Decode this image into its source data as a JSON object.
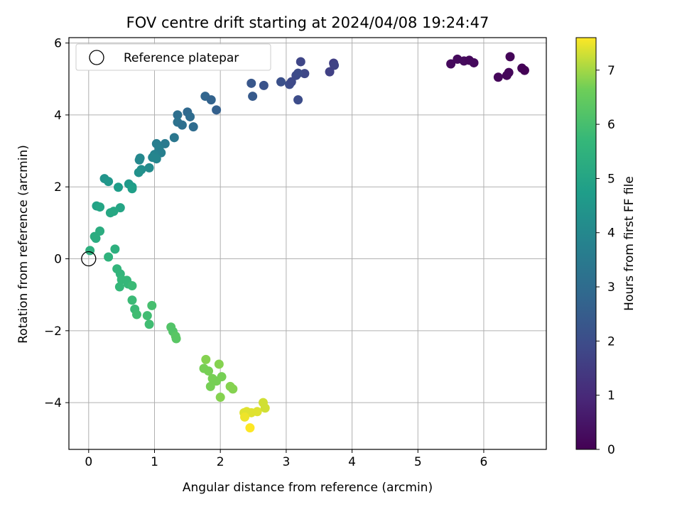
{
  "chart_data": {
    "type": "scatter",
    "title": "FOV centre drift starting at 2024/04/08 19:24:47",
    "xlabel": "Angular distance from reference (arcmin)",
    "ylabel": "Rotation from reference (arcmin)",
    "xlim": [
      -0.3,
      6.95
    ],
    "ylim": [
      -5.3,
      6.15
    ],
    "xticks": [
      0,
      1,
      2,
      3,
      4,
      5,
      6
    ],
    "yticks": [
      -4,
      -2,
      0,
      2,
      4,
      6
    ],
    "grid": true,
    "legend": {
      "placement": "top-left",
      "entries": [
        "Reference platepar"
      ]
    },
    "reference_point": {
      "x": 0,
      "y": 0
    },
    "colorbar": {
      "label": "Hours from first FF file",
      "min": 0,
      "max": 7.6,
      "ticks": [
        0,
        1,
        2,
        3,
        4,
        5,
        6,
        7
      ],
      "colormap": "viridis"
    },
    "points": [
      {
        "x": 5.5,
        "y": 5.42,
        "h": 0.2
      },
      {
        "x": 5.6,
        "y": 5.55,
        "h": 0.22
      },
      {
        "x": 5.7,
        "y": 5.5,
        "h": 0.25
      },
      {
        "x": 5.78,
        "y": 5.52,
        "h": 0.18
      },
      {
        "x": 5.85,
        "y": 5.45,
        "h": 0.2
      },
      {
        "x": 6.22,
        "y": 5.05,
        "h": 0.15
      },
      {
        "x": 6.35,
        "y": 5.1,
        "h": 0.12
      },
      {
        "x": 6.38,
        "y": 5.18,
        "h": 0.15
      },
      {
        "x": 6.4,
        "y": 5.62,
        "h": 0.1
      },
      {
        "x": 6.58,
        "y": 5.3,
        "h": 0.05
      },
      {
        "x": 6.62,
        "y": 5.24,
        "h": 0.03
      },
      {
        "x": 3.22,
        "y": 5.48,
        "h": 1.8
      },
      {
        "x": 3.72,
        "y": 5.44,
        "h": 1.6
      },
      {
        "x": 3.73,
        "y": 5.38,
        "h": 1.7
      },
      {
        "x": 3.66,
        "y": 5.2,
        "h": 1.65
      },
      {
        "x": 3.28,
        "y": 5.15,
        "h": 1.85
      },
      {
        "x": 3.15,
        "y": 5.1,
        "h": 1.9
      },
      {
        "x": 3.18,
        "y": 5.16,
        "h": 1.95
      },
      {
        "x": 3.05,
        "y": 4.85,
        "h": 2.0
      },
      {
        "x": 3.08,
        "y": 4.92,
        "h": 1.9
      },
      {
        "x": 2.92,
        "y": 4.92,
        "h": 2.1
      },
      {
        "x": 3.18,
        "y": 4.42,
        "h": 2.0
      },
      {
        "x": 2.66,
        "y": 4.82,
        "h": 2.2
      },
      {
        "x": 2.47,
        "y": 4.88,
        "h": 2.3
      },
      {
        "x": 2.49,
        "y": 4.52,
        "h": 2.4
      },
      {
        "x": 1.77,
        "y": 4.52,
        "h": 2.8
      },
      {
        "x": 1.86,
        "y": 4.42,
        "h": 2.7
      },
      {
        "x": 1.94,
        "y": 4.14,
        "h": 2.6
      },
      {
        "x": 1.5,
        "y": 4.08,
        "h": 2.9
      },
      {
        "x": 1.54,
        "y": 3.95,
        "h": 3.0
      },
      {
        "x": 1.35,
        "y": 4.0,
        "h": 3.1
      },
      {
        "x": 1.35,
        "y": 3.8,
        "h": 3.2
      },
      {
        "x": 1.42,
        "y": 3.72,
        "h": 3.1
      },
      {
        "x": 1.59,
        "y": 3.67,
        "h": 3.0
      },
      {
        "x": 1.3,
        "y": 3.37,
        "h": 3.4
      },
      {
        "x": 1.16,
        "y": 3.2,
        "h": 3.5
      },
      {
        "x": 1.03,
        "y": 3.2,
        "h": 3.6
      },
      {
        "x": 1.07,
        "y": 3.05,
        "h": 3.7
      },
      {
        "x": 1.1,
        "y": 2.95,
        "h": 3.7
      },
      {
        "x": 1.0,
        "y": 2.9,
        "h": 3.8
      },
      {
        "x": 0.97,
        "y": 2.82,
        "h": 3.9
      },
      {
        "x": 1.03,
        "y": 2.78,
        "h": 3.9
      },
      {
        "x": 0.78,
        "y": 2.8,
        "h": 4.0
      },
      {
        "x": 0.77,
        "y": 2.75,
        "h": 4.0
      },
      {
        "x": 0.92,
        "y": 2.53,
        "h": 4.1
      },
      {
        "x": 0.8,
        "y": 2.48,
        "h": 4.2
      },
      {
        "x": 0.76,
        "y": 2.4,
        "h": 4.3
      },
      {
        "x": 0.24,
        "y": 2.23,
        "h": 4.4
      },
      {
        "x": 0.3,
        "y": 2.15,
        "h": 4.5
      },
      {
        "x": 0.45,
        "y": 1.99,
        "h": 4.7
      },
      {
        "x": 0.61,
        "y": 2.08,
        "h": 4.6
      },
      {
        "x": 0.66,
        "y": 2.0,
        "h": 4.7
      },
      {
        "x": 0.66,
        "y": 1.95,
        "h": 4.8
      },
      {
        "x": 0.12,
        "y": 1.47,
        "h": 4.9
      },
      {
        "x": 0.17,
        "y": 1.44,
        "h": 5.0
      },
      {
        "x": 0.48,
        "y": 1.42,
        "h": 5.0
      },
      {
        "x": 0.33,
        "y": 1.28,
        "h": 5.1
      },
      {
        "x": 0.38,
        "y": 1.32,
        "h": 5.1
      },
      {
        "x": 0.09,
        "y": 0.62,
        "h": 5.3
      },
      {
        "x": 0.17,
        "y": 0.77,
        "h": 5.3
      },
      {
        "x": 0.11,
        "y": 0.57,
        "h": 5.3
      },
      {
        "x": 0.02,
        "y": 0.23,
        "h": 5.4
      },
      {
        "x": 0.4,
        "y": 0.27,
        "h": 5.4
      },
      {
        "x": 0.3,
        "y": 0.05,
        "h": 5.5
      },
      {
        "x": 0.43,
        "y": -0.28,
        "h": 5.6
      },
      {
        "x": 0.48,
        "y": -0.42,
        "h": 5.6
      },
      {
        "x": 0.5,
        "y": -0.58,
        "h": 5.7
      },
      {
        "x": 0.47,
        "y": -0.78,
        "h": 5.7
      },
      {
        "x": 0.58,
        "y": -0.6,
        "h": 5.7
      },
      {
        "x": 0.6,
        "y": -0.7,
        "h": 5.7
      },
      {
        "x": 0.66,
        "y": -0.75,
        "h": 5.8
      },
      {
        "x": 0.66,
        "y": -1.15,
        "h": 5.8
      },
      {
        "x": 0.7,
        "y": -1.4,
        "h": 5.8
      },
      {
        "x": 0.73,
        "y": -1.55,
        "h": 5.9
      },
      {
        "x": 0.89,
        "y": -1.58,
        "h": 5.9
      },
      {
        "x": 0.92,
        "y": -1.82,
        "h": 5.9
      },
      {
        "x": 0.96,
        "y": -1.3,
        "h": 6.0
      },
      {
        "x": 1.25,
        "y": -1.9,
        "h": 6.2
      },
      {
        "x": 1.28,
        "y": -2.02,
        "h": 6.2
      },
      {
        "x": 1.32,
        "y": -2.15,
        "h": 6.3
      },
      {
        "x": 1.33,
        "y": -2.22,
        "h": 6.3
      },
      {
        "x": 1.78,
        "y": -2.8,
        "h": 6.8
      },
      {
        "x": 1.98,
        "y": -2.93,
        "h": 6.8
      },
      {
        "x": 1.75,
        "y": -3.05,
        "h": 6.7
      },
      {
        "x": 1.82,
        "y": -3.12,
        "h": 6.7
      },
      {
        "x": 1.88,
        "y": -3.33,
        "h": 6.7
      },
      {
        "x": 2.02,
        "y": -3.28,
        "h": 6.7
      },
      {
        "x": 1.94,
        "y": -3.4,
        "h": 6.7
      },
      {
        "x": 1.85,
        "y": -3.55,
        "h": 6.7
      },
      {
        "x": 2.15,
        "y": -3.55,
        "h": 6.8
      },
      {
        "x": 2.19,
        "y": -3.62,
        "h": 6.8
      },
      {
        "x": 2.0,
        "y": -3.85,
        "h": 6.8
      },
      {
        "x": 2.36,
        "y": -4.28,
        "h": 7.4
      },
      {
        "x": 2.4,
        "y": -4.25,
        "h": 7.4
      },
      {
        "x": 2.47,
        "y": -4.28,
        "h": 7.4
      },
      {
        "x": 2.56,
        "y": -4.25,
        "h": 7.4
      },
      {
        "x": 2.65,
        "y": -4.0,
        "h": 7.3
      },
      {
        "x": 2.68,
        "y": -4.15,
        "h": 7.3
      },
      {
        "x": 2.37,
        "y": -4.4,
        "h": 7.5
      },
      {
        "x": 2.45,
        "y": -4.7,
        "h": 7.6
      }
    ]
  }
}
